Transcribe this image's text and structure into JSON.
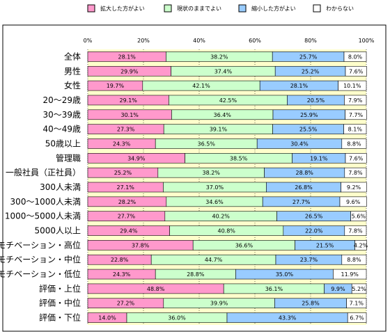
{
  "chart_data": {
    "type": "bar",
    "orientation": "horizontal",
    "stacked": true,
    "percent": true,
    "xlim": [
      0,
      100
    ],
    "x_ticks": [
      "0%",
      "20%",
      "40%",
      "60%",
      "80%",
      "100%"
    ],
    "grid": true,
    "legend_position": "top",
    "categories": [
      "全体",
      "男性",
      "女性",
      "20～29歳",
      "30～39歳",
      "40～49歳",
      "50歳以上",
      "管理職",
      "一般社員（正社員）",
      "300人未満",
      "300～1000人未満",
      "1000～5000人未満",
      "5000人以上",
      "モチベーション・高位",
      "モチベーション・中位",
      "モチベーション・低位",
      "評価・上位",
      "評価・中位",
      "評価・下位"
    ],
    "series": [
      {
        "name": "拡大した方がよい",
        "color": "#ff99cc",
        "values": [
          28.1,
          29.9,
          19.7,
          29.1,
          30.1,
          27.3,
          24.3,
          34.9,
          25.2,
          27.1,
          28.2,
          27.7,
          29.4,
          37.8,
          22.8,
          24.3,
          48.8,
          27.2,
          14.0
        ],
        "labels": [
          "28.1%",
          "29.9%",
          "19.7%",
          "29.1%",
          "30.1%",
          "27.3%",
          "24.3%",
          "34.9%",
          "25.2%",
          "27.1%",
          "28.2%",
          "27.7%",
          "29.4%",
          "37.8%",
          "22.8%",
          "24.3%",
          "48.8%",
          "27.2%",
          "14.0%"
        ]
      },
      {
        "name": "現状のままでよい",
        "color": "#ccffcc",
        "values": [
          38.2,
          37.4,
          42.1,
          42.5,
          36.4,
          39.1,
          36.5,
          38.5,
          38.2,
          37.0,
          34.6,
          40.2,
          40.8,
          36.6,
          44.7,
          28.8,
          36.1,
          39.9,
          36.0
        ],
        "labels": [
          "38.2%",
          "37.4%",
          "42.1%",
          "42.5%",
          "36.4%",
          "39.1%",
          "36.5%",
          "38.5%",
          "38.2%",
          "37.0%",
          "34.6%",
          "40.2%",
          "40.8%",
          "36.6%",
          "44.7%",
          "28.8%",
          "36.1%",
          "39.9%",
          "36.0%"
        ]
      },
      {
        "name": "縮小した方がよい",
        "color": "#99ccff",
        "values": [
          25.7,
          25.2,
          28.1,
          20.5,
          25.9,
          25.5,
          30.4,
          19.1,
          28.8,
          26.8,
          27.7,
          26.5,
          22.0,
          21.5,
          23.7,
          35.0,
          9.9,
          25.8,
          43.3
        ],
        "labels": [
          "25.7%",
          "25.2%",
          "28.1%",
          "20.5%",
          "25.9%",
          "25.5%",
          "30.4%",
          "19.1%",
          "28.8%",
          "26.8%",
          "27.7%",
          "26.5%",
          "22.0%",
          "21.5%",
          "23.7%",
          "35.0%",
          "9.9%",
          "25.8%",
          "43.3%"
        ]
      },
      {
        "name": "わからない",
        "color": "#ffffff",
        "values": [
          8.0,
          7.6,
          10.1,
          7.9,
          7.7,
          8.1,
          8.8,
          7.6,
          7.8,
          9.2,
          9.6,
          5.6,
          7.8,
          4.2,
          8.8,
          11.9,
          5.2,
          7.1,
          6.7
        ],
        "labels": [
          "8.0%",
          "7.6%",
          "10.1%",
          "7.9%",
          "7.7%",
          "8.1%",
          "8.8%",
          "7.6%",
          "7.8%",
          "9.2%",
          "9.6%",
          "5.6%",
          "7.8%",
          "4.2%",
          "8.8%",
          "11.9%",
          "5.2%",
          "7.1%",
          "6.7%"
        ]
      }
    ]
  }
}
